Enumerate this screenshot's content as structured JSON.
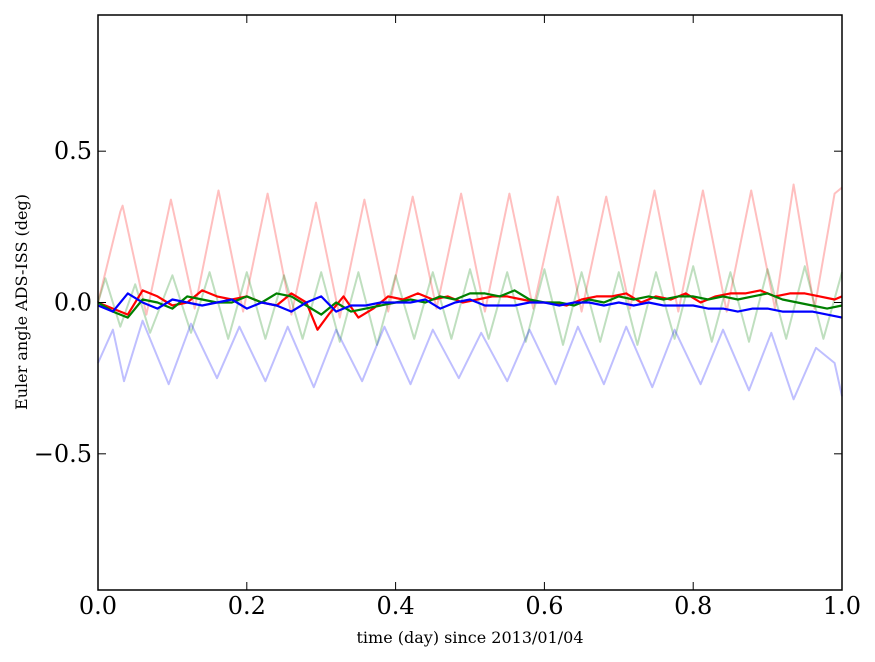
{
  "chart_data": {
    "type": "line",
    "title": "",
    "xlabel": "time (day) since 2013/01/04",
    "ylabel": "Euler angle ADS-ISS (deg)",
    "xlim": [
      0.0,
      1.0
    ],
    "ylim": [
      -0.95,
      0.95
    ],
    "grid": false,
    "legend": "none",
    "x_ticks": [
      {
        "value": 0.0,
        "label": "0.0"
      },
      {
        "value": 0.2,
        "label": "0.2"
      },
      {
        "value": 0.4,
        "label": "0.4"
      },
      {
        "value": 0.6,
        "label": "0.6"
      },
      {
        "value": 0.8,
        "label": "0.8"
      },
      {
        "value": 1.0,
        "label": "1.0"
      }
    ],
    "y_ticks": [
      {
        "value": 0.5,
        "label": "0.5"
      },
      {
        "value": 0.0,
        "label": "0.0"
      },
      {
        "value": -0.5,
        "label": "−0.5"
      }
    ],
    "series": [
      {
        "color": "#ff0000",
        "opacity": 0.25,
        "x": [
          0,
          0.03,
          0.033,
          0.065,
          0.098,
          0.13,
          0.162,
          0.195,
          0.228,
          0.26,
          0.293,
          0.325,
          0.358,
          0.39,
          0.423,
          0.455,
          0.488,
          0.52,
          0.553,
          0.585,
          0.618,
          0.65,
          0.683,
          0.715,
          0.748,
          0.78,
          0.813,
          0.845,
          0.878,
          0.91,
          0.935,
          0.963,
          0.99,
          1.0
        ],
        "y": [
          0.0,
          0.3,
          0.32,
          -0.04,
          0.34,
          -0.02,
          0.37,
          -0.03,
          0.36,
          -0.04,
          0.33,
          -0.05,
          0.34,
          -0.03,
          0.35,
          -0.02,
          0.36,
          -0.03,
          0.36,
          -0.02,
          0.35,
          -0.03,
          0.35,
          -0.02,
          0.37,
          -0.03,
          0.37,
          -0.03,
          0.37,
          -0.02,
          0.39,
          -0.02,
          0.36,
          0.38
        ]
      },
      {
        "color": "#008000",
        "opacity": 0.25,
        "x": [
          0,
          0.01,
          0.03,
          0.05,
          0.07,
          0.1,
          0.125,
          0.15,
          0.175,
          0.2,
          0.225,
          0.25,
          0.275,
          0.3,
          0.325,
          0.35,
          0.375,
          0.4,
          0.425,
          0.45,
          0.475,
          0.5,
          0.525,
          0.55,
          0.575,
          0.6,
          0.625,
          0.65,
          0.675,
          0.7,
          0.725,
          0.75,
          0.775,
          0.8,
          0.825,
          0.85,
          0.875,
          0.9,
          0.925,
          0.95,
          0.975,
          1.0
        ],
        "y": [
          0.0,
          0.08,
          -0.08,
          0.06,
          -0.1,
          0.09,
          -0.1,
          0.1,
          -0.12,
          0.1,
          -0.12,
          0.09,
          -0.12,
          0.1,
          -0.13,
          0.1,
          -0.14,
          0.09,
          -0.12,
          0.1,
          -0.12,
          0.11,
          -0.12,
          0.1,
          -0.13,
          0.11,
          -0.14,
          0.1,
          -0.13,
          0.1,
          -0.14,
          0.1,
          -0.12,
          0.12,
          -0.13,
          0.1,
          -0.13,
          0.11,
          -0.12,
          0.12,
          -0.12,
          0.1
        ]
      },
      {
        "color": "#0000ff",
        "opacity": 0.25,
        "x": [
          0,
          0.02,
          0.035,
          0.06,
          0.095,
          0.125,
          0.16,
          0.19,
          0.225,
          0.255,
          0.29,
          0.32,
          0.355,
          0.385,
          0.42,
          0.45,
          0.485,
          0.515,
          0.55,
          0.58,
          0.615,
          0.645,
          0.68,
          0.71,
          0.745,
          0.775,
          0.81,
          0.84,
          0.875,
          0.905,
          0.935,
          0.965,
          0.99,
          1.0
        ],
        "y": [
          -0.2,
          -0.09,
          -0.26,
          -0.06,
          -0.27,
          -0.07,
          -0.25,
          -0.08,
          -0.26,
          -0.08,
          -0.28,
          -0.09,
          -0.26,
          -0.08,
          -0.27,
          -0.09,
          -0.25,
          -0.1,
          -0.26,
          -0.09,
          -0.27,
          -0.08,
          -0.27,
          -0.08,
          -0.28,
          -0.09,
          -0.27,
          -0.09,
          -0.29,
          -0.1,
          -0.32,
          -0.15,
          -0.2,
          -0.31
        ]
      },
      {
        "color": "#ff0000",
        "opacity": 1,
        "x": [
          0,
          0.02,
          0.04,
          0.06,
          0.08,
          0.1,
          0.12,
          0.14,
          0.16,
          0.18,
          0.2,
          0.22,
          0.24,
          0.26,
          0.28,
          0.295,
          0.31,
          0.33,
          0.35,
          0.37,
          0.39,
          0.41,
          0.43,
          0.45,
          0.47,
          0.49,
          0.51,
          0.53,
          0.55,
          0.57,
          0.59,
          0.61,
          0.63,
          0.65,
          0.67,
          0.69,
          0.71,
          0.73,
          0.75,
          0.77,
          0.79,
          0.81,
          0.83,
          0.85,
          0.87,
          0.89,
          0.91,
          0.93,
          0.95,
          0.97,
          0.99,
          1.0
        ],
        "y": [
          0.0,
          -0.02,
          -0.04,
          0.04,
          0.02,
          -0.01,
          0.0,
          0.04,
          0.02,
          0.01,
          0.02,
          0.0,
          -0.01,
          0.03,
          0.0,
          -0.09,
          -0.04,
          0.02,
          -0.05,
          -0.02,
          0.02,
          0.01,
          0.03,
          0.01,
          0.02,
          0.0,
          0.01,
          0.02,
          0.02,
          0.01,
          0.0,
          0.0,
          -0.01,
          0.01,
          0.02,
          0.02,
          0.03,
          0.0,
          0.02,
          0.01,
          0.03,
          0.0,
          0.02,
          0.03,
          0.03,
          0.04,
          0.02,
          0.03,
          0.03,
          0.02,
          0.01,
          0.02
        ]
      },
      {
        "color": "#008000",
        "opacity": 1,
        "x": [
          0,
          0.02,
          0.04,
          0.06,
          0.08,
          0.1,
          0.12,
          0.14,
          0.16,
          0.18,
          0.2,
          0.22,
          0.24,
          0.26,
          0.28,
          0.3,
          0.32,
          0.34,
          0.36,
          0.38,
          0.4,
          0.42,
          0.44,
          0.46,
          0.48,
          0.5,
          0.52,
          0.54,
          0.56,
          0.58,
          0.6,
          0.62,
          0.64,
          0.66,
          0.68,
          0.7,
          0.72,
          0.74,
          0.76,
          0.78,
          0.8,
          0.82,
          0.84,
          0.86,
          0.88,
          0.9,
          0.92,
          0.94,
          0.96,
          0.98,
          1.0
        ],
        "y": [
          0.0,
          -0.03,
          -0.05,
          0.01,
          0.0,
          -0.02,
          0.02,
          0.01,
          0.0,
          0.0,
          0.02,
          0.0,
          0.03,
          0.02,
          -0.01,
          -0.04,
          0.0,
          -0.03,
          -0.02,
          -0.01,
          0.0,
          0.01,
          0.0,
          0.02,
          0.01,
          0.03,
          0.03,
          0.02,
          0.04,
          0.01,
          0.0,
          0.0,
          -0.01,
          0.01,
          0.0,
          0.02,
          0.01,
          0.02,
          0.01,
          0.02,
          0.02,
          0.01,
          0.02,
          0.01,
          0.02,
          0.03,
          0.01,
          0.0,
          -0.01,
          -0.02,
          -0.01
        ]
      },
      {
        "color": "#0000ff",
        "opacity": 1,
        "x": [
          0,
          0.02,
          0.04,
          0.06,
          0.08,
          0.1,
          0.12,
          0.14,
          0.16,
          0.18,
          0.2,
          0.22,
          0.24,
          0.26,
          0.28,
          0.3,
          0.32,
          0.34,
          0.36,
          0.38,
          0.4,
          0.42,
          0.44,
          0.46,
          0.48,
          0.5,
          0.52,
          0.54,
          0.56,
          0.58,
          0.6,
          0.62,
          0.64,
          0.66,
          0.68,
          0.7,
          0.72,
          0.74,
          0.76,
          0.78,
          0.8,
          0.82,
          0.84,
          0.86,
          0.88,
          0.9,
          0.92,
          0.94,
          0.96,
          0.98,
          1.0
        ],
        "y": [
          -0.01,
          -0.03,
          0.03,
          0.0,
          -0.02,
          0.01,
          0.0,
          -0.01,
          0.0,
          0.01,
          -0.02,
          0.0,
          -0.01,
          -0.03,
          0.0,
          0.02,
          -0.03,
          -0.01,
          -0.01,
          0.0,
          0.0,
          0.0,
          0.01,
          -0.02,
          0.0,
          0.01,
          -0.01,
          -0.01,
          -0.01,
          0.0,
          0.0,
          -0.01,
          0.0,
          0.0,
          -0.01,
          0.0,
          -0.01,
          0.0,
          -0.01,
          -0.01,
          -0.01,
          -0.02,
          -0.02,
          -0.03,
          -0.02,
          -0.02,
          -0.03,
          -0.03,
          -0.03,
          -0.04,
          -0.05
        ]
      }
    ]
  }
}
